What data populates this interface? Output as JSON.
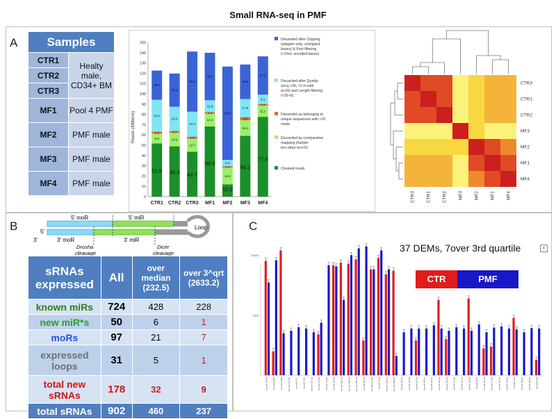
{
  "title": "Small RNA-seq in PMF",
  "panels": {
    "a": "A",
    "b": "B",
    "c": "C"
  },
  "samples": {
    "header": "Samples",
    "rows": [
      {
        "id": "CTR1",
        "desc": ""
      },
      {
        "id": "CTR2",
        "desc": "Healty male, CD34+ BM"
      },
      {
        "id": "CTR3",
        "desc": ""
      },
      {
        "id": "MF1",
        "desc": "Pool 4 PMF"
      },
      {
        "id": "MF2",
        "desc": "PMF male"
      },
      {
        "id": "MF3",
        "desc": "PMF male"
      },
      {
        "id": "MF4",
        "desc": "PMF male"
      }
    ]
  },
  "stacked_chart": {
    "ylabel": "Reads (Millions)",
    "yticks": [
      "0",
      "10",
      "20",
      "30",
      "40",
      "50",
      "60",
      "70",
      "80",
      "90",
      "100",
      "110",
      "120",
      "130",
      "140",
      "150"
    ],
    "legend": [
      {
        "label": "Discarded after Clipping (adapter-only, unclipped bases) & First filtering (<15nt, uncalled bases)",
        "color": "#3b63d8"
      },
      {
        "label": "Discarded after Quality (av.q.<30, >2 nt with q<20) and Length filtering (<30 nt)",
        "color": "#7fe6f5"
      },
      {
        "label": "Discarded as belonging to unique sequences with <10 reads",
        "color": "#e8673a"
      },
      {
        "label": "Discarded by comparative mapping (hairpin loci-other loci>5)",
        "color": "#9df06a"
      },
      {
        "label": "Cleaned reads",
        "color": "#1b8f2a"
      }
    ]
  },
  "chart_data": [
    {
      "type": "bar",
      "stacked": true,
      "categories": [
        "CTR1",
        "CTR2",
        "CTR3",
        "MF1",
        "MF2",
        "MF3",
        "MF4"
      ],
      "ylim": [
        0,
        150
      ],
      "ylabel": "Reads (Millions)",
      "series": [
        {
          "name": "Cleaned reads",
          "values": [
            51.8,
            48.9,
            43.7,
            68.3,
            12.0,
            59.1,
            77.6
          ],
          "labels": [
            "51.8",
            "48.9",
            "43.7",
            "68.3",
            "12.0",
            "59.1",
            "77.6"
          ]
        },
        {
          "name": "Discarded by comparative mapping (hairpin loci-other loci>5)",
          "values": [
            9.5,
            13.2,
            12.7,
            12.4,
            16.2,
            15.2,
            11.1
          ],
          "labels": [
            "9.5",
            "13.2",
            "12.7",
            "12.4",
            "16.2",
            "15.2",
            "11.1"
          ]
        },
        {
          "name": "Discarded as belonging to unique sequences with <10 reads",
          "values": [
            1.8,
            1.7,
            1.9,
            1.4,
            1.4,
            3.0,
            1.4
          ],
          "labels": [
            "1.8",
            "1.7",
            "1.9",
            "1.4",
            "1.4",
            "3.0",
            "1.4"
          ]
        },
        {
          "name": "Discarded after Quality (av.q.<30, >2 nt with q<20) and Length filtering (<30 nt)",
          "values": [
            31.1,
            23.6,
            24.3,
            11.6,
            6.1,
            17.6,
            9.1
          ],
          "labels": [
            "31.1",
            "23.6",
            "24.3",
            "11.6",
            "6.1",
            "17.6",
            "9.1"
          ]
        },
        {
          "name": "Discarded after Clipping (adapter-only, unclipped bases) & First filtering (<15nt, uncalled bases)",
          "values": [
            28.4,
            32.3,
            58.5,
            46.2,
            90.8,
            33.6,
            37.2
          ],
          "labels": [
            "28.4",
            "32.3",
            "58.5",
            "46.2",
            "90.8",
            "33.6",
            "37.2"
          ]
        }
      ]
    },
    {
      "type": "heatmap",
      "rows": [
        "CTR3",
        "CTR1",
        "CTR2",
        "MF3",
        "MF2",
        "MF1",
        "MF4"
      ],
      "columns": [
        "CTR3",
        "CTR1",
        "CTR2",
        "MF3",
        "MF2",
        "MF1",
        "MF4"
      ],
      "values": [
        [
          1,
          0.85,
          0.75,
          0.15,
          0.2,
          0.3,
          0.3
        ],
        [
          0.85,
          1,
          0.85,
          0.15,
          0.2,
          0.3,
          0.3
        ],
        [
          0.75,
          0.85,
          1,
          0.1,
          0.2,
          0.25,
          0.3
        ],
        [
          0.15,
          0.15,
          0.1,
          1,
          0.2,
          0.15,
          0.15
        ],
        [
          0.2,
          0.2,
          0.2,
          0.2,
          1,
          0.7,
          0.55
        ],
        [
          0.3,
          0.3,
          0.25,
          0.15,
          0.7,
          1,
          0.8
        ],
        [
          0.3,
          0.3,
          0.3,
          0.15,
          0.55,
          0.8,
          1
        ]
      ]
    },
    {
      "type": "bar",
      "title": "37 DEMs, 7over 3rd quartile",
      "categories": [
        "hsa-miR-128-3p",
        "hsa-miR-1260a",
        "hsa-miR-1260b",
        "hsa-miR-1271-5p",
        "hsa-miR-1275",
        "hsa-miR-1303",
        "hsa-miR-1307-3p",
        "hsa-miR-143-3p",
        "hsa-miR-144-3p",
        "hsa-miR-144-5p",
        "hsa-miR-146a-5p",
        "hsa-miR-146b-5p",
        "hsa-miR-148a-3p",
        "hsa-miR-150-5p",
        "hsa-miR-151a-3p",
        "hsa-miR-16-5p",
        "hsa-miR-181a-5p",
        "hsa-miR-181b-5p",
        "hsa-miR-182-5p",
        "hsa-miR-183-5p",
        "hsa-miR-185-5p",
        "hsa-miR-186-5p",
        "hsa-miR-191-5p",
        "hsa-miR-19b-3p",
        "hsa-miR-221-3p",
        "hsa-miR-222-3p",
        "hsa-miR-223-3p",
        "hsa-miR-23a-3p",
        "hsa-miR-25-3p",
        "hsa-miR-26a-5p",
        "hsa-miR-27b-3p",
        "hsa-miR-29a-3p",
        "hsa-miR-30d-5p",
        "hsa-miR-320a",
        "hsa-miR-339-5p",
        "hsa-miR-342-3p",
        "hsa-miR-93-5p"
      ],
      "series": [
        {
          "name": "CTR",
          "values": [
            8000,
            250,
            12000,
            0,
            0,
            0,
            0,
            480,
            0,
            6800,
            7500,
            7200,
            8500,
            380,
            5800,
            9000,
            4800,
            5500,
            0,
            0,
            380,
            0,
            0,
            1800,
            400,
            0,
            0,
            1900,
            0,
            280,
            300,
            0,
            0,
            900,
            0,
            0,
            180
          ]
        },
        {
          "name": "PMF",
          "values": [
            3500,
            8200,
            500,
            550,
            630,
            600,
            520,
            750,
            6800,
            6500,
            1800,
            10000,
            13000,
            14000,
            5800,
            12000,
            5800,
            210,
            520,
            600,
            600,
            600,
            680,
            600,
            550,
            630,
            600,
            550,
            700,
            520,
            620,
            650,
            600,
            580,
            520,
            610,
            600
          ]
        }
      ]
    }
  ],
  "diagram": {
    "five_mor": "5' moR",
    "five_mir": "5' miR",
    "three_mor": "3' moR",
    "three_mir": "3' miR",
    "three_prime": "3'",
    "five_prime": "5'",
    "loop": "Loop",
    "drosha": "Drosha cleavage",
    "dicer": "Dicer cleavage"
  },
  "rna_table": {
    "headers": [
      "sRNAs expressed",
      "All",
      "over median (232.5)",
      "over 3^qrt (2633.2)"
    ],
    "rows": [
      {
        "label": "known miRs",
        "label_color": "#2e7d1f",
        "all": "724",
        "median": "428",
        "q3": "228",
        "q3_color": "#111111"
      },
      {
        "label": "new miR*s",
        "label_color": "#2e9a2a",
        "all": "50",
        "median": "6",
        "q3": "1",
        "q3_color": "#c62020"
      },
      {
        "label": "moRs",
        "label_color": "#2255d8",
        "all": "97",
        "median": "21",
        "q3": "7",
        "q3_color": "#c62020"
      },
      {
        "label": "expressed loops",
        "label_color": "#707070",
        "all": "31",
        "median": "5",
        "q3": "1",
        "q3_color": "#c62020"
      },
      {
        "label": "total new sRNAs",
        "label_color": "#d01515",
        "all": "178",
        "median": "32",
        "q3": "9",
        "q3_color": "#c62020"
      }
    ],
    "footer": {
      "label": "total sRNAs",
      "all": "902",
      "median": "460",
      "q3": "237"
    }
  },
  "dem_chart": {
    "title": "37 DEMs, 7over 3rd quartile",
    "legend_ctr": "CTR",
    "legend_pmf": "PMF",
    "y_tick_high": "10000",
    "y_tick_low": "1000",
    "colors": {
      "ctr": "#e01c1c",
      "pmf": "#1818c8"
    }
  }
}
